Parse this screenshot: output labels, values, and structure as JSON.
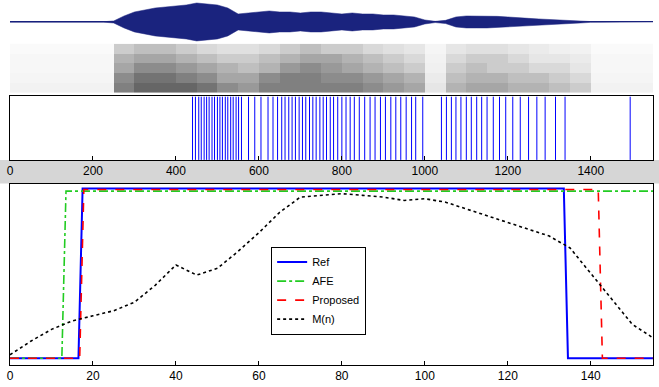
{
  "chart_data": [
    {
      "type": "waveform",
      "color": "#1a237e",
      "x": [
        0,
        25,
        50,
        75,
        100,
        125,
        150,
        175,
        200,
        225,
        250,
        275,
        300,
        325,
        350,
        375,
        400,
        425,
        450,
        475,
        500,
        525,
        550,
        575,
        600,
        625,
        650,
        675,
        700,
        725,
        750,
        775,
        800,
        825,
        850,
        875,
        900,
        925,
        950,
        975,
        1000,
        1025,
        1050,
        1075,
        1100,
        1125,
        1150,
        1175,
        1200,
        1225,
        1250,
        1275,
        1300,
        1325,
        1350,
        1375,
        1400,
        1425,
        1450,
        1475,
        1500,
        1525,
        1550
      ],
      "values": [
        0.01,
        0.01,
        0.01,
        0.01,
        0.01,
        0.01,
        0.01,
        0.01,
        0.01,
        0.01,
        0.05,
        0.3,
        0.5,
        0.6,
        0.7,
        0.75,
        0.8,
        0.85,
        0.95,
        0.9,
        0.85,
        0.7,
        0.4,
        0.45,
        0.5,
        0.55,
        0.5,
        0.5,
        0.45,
        0.5,
        0.5,
        0.45,
        0.4,
        0.45,
        0.4,
        0.4,
        0.35,
        0.35,
        0.3,
        0.25,
        0.1,
        0.03,
        0.08,
        0.25,
        0.3,
        0.3,
        0.3,
        0.28,
        0.25,
        0.2,
        0.18,
        0.15,
        0.12,
        0.1,
        0.08,
        0.05,
        0.02,
        0.01,
        0.01,
        0.01,
        0.01,
        0.01,
        0.01
      ],
      "xlim": [
        0,
        1550
      ],
      "ylim": [
        -1,
        1
      ],
      "tick_labels": false
    },
    {
      "type": "heatmap",
      "x": [
        25,
        75,
        125,
        175,
        225,
        275,
        325,
        375,
        425,
        475,
        525,
        575,
        625,
        675,
        725,
        775,
        825,
        875,
        925,
        975,
        1025,
        1075,
        1125,
        1175,
        1225,
        1275,
        1325,
        1375,
        1425,
        1475,
        1525
      ],
      "y": [
        0.5,
        1.5,
        2.5,
        3.5,
        4.5
      ],
      "cells": [
        [
          0.05,
          0.05,
          0.05,
          0.05,
          0.05,
          0.5,
          0.6,
          0.6,
          0.6,
          0.55,
          0.45,
          0.4,
          0.5,
          0.5,
          0.5,
          0.5,
          0.5,
          0.45,
          0.4,
          0.35,
          0.1,
          0.3,
          0.35,
          0.35,
          0.3,
          0.3,
          0.25,
          0.2,
          0.05,
          0.05,
          0.05
        ],
        [
          0.04,
          0.04,
          0.04,
          0.04,
          0.04,
          0.45,
          0.55,
          0.55,
          0.5,
          0.45,
          0.35,
          0.35,
          0.45,
          0.5,
          0.5,
          0.45,
          0.45,
          0.4,
          0.35,
          0.3,
          0.08,
          0.25,
          0.3,
          0.3,
          0.25,
          0.25,
          0.2,
          0.15,
          0.04,
          0.04,
          0.04
        ],
        [
          0.03,
          0.03,
          0.03,
          0.03,
          0.03,
          0.35,
          0.45,
          0.45,
          0.4,
          0.35,
          0.3,
          0.25,
          0.3,
          0.4,
          0.45,
          0.4,
          0.35,
          0.3,
          0.25,
          0.2,
          0.06,
          0.2,
          0.25,
          0.2,
          0.2,
          0.15,
          0.15,
          0.1,
          0.03,
          0.03,
          0.03
        ],
        [
          0.03,
          0.03,
          0.03,
          0.03,
          0.03,
          0.3,
          0.35,
          0.35,
          0.3,
          0.25,
          0.2,
          0.2,
          0.25,
          0.3,
          0.35,
          0.35,
          0.3,
          0.25,
          0.2,
          0.15,
          0.05,
          0.15,
          0.2,
          0.2,
          0.15,
          0.1,
          0.1,
          0.08,
          0.03,
          0.03,
          0.03
        ],
        [
          0.02,
          0.02,
          0.02,
          0.02,
          0.02,
          0.2,
          0.25,
          0.25,
          0.2,
          0.15,
          0.12,
          0.12,
          0.15,
          0.2,
          0.25,
          0.2,
          0.2,
          0.15,
          0.12,
          0.1,
          0.04,
          0.1,
          0.12,
          0.12,
          0.1,
          0.08,
          0.06,
          0.05,
          0.02,
          0.02,
          0.02
        ]
      ],
      "zlim": [
        0,
        1
      ],
      "xlim": [
        0,
        1550
      ],
      "ylim": [
        0,
        5
      ],
      "tick_labels": false
    },
    {
      "type": "event",
      "color": "#0000ff",
      "x": [
        440,
        447,
        455,
        461,
        468,
        474,
        480,
        487,
        493,
        500,
        506,
        512,
        519,
        525,
        532,
        538,
        545,
        551,
        558,
        575,
        590,
        605,
        622,
        634,
        645,
        655,
        663,
        672,
        680,
        688,
        697,
        705,
        713,
        722,
        730,
        738,
        747,
        755,
        763,
        772,
        780,
        790,
        800,
        810,
        820,
        830,
        842,
        855,
        868,
        880,
        893,
        905,
        918,
        930,
        942,
        955,
        968,
        978,
        995,
        1040,
        1052,
        1064,
        1075,
        1087,
        1100,
        1112,
        1125,
        1137,
        1150,
        1165,
        1180,
        1195,
        1212,
        1230,
        1250,
        1270,
        1290,
        1315,
        1338,
        1495
      ],
      "xlim": [
        0,
        1550
      ],
      "xticks": [
        0,
        200,
        400,
        600,
        800,
        1000,
        1200,
        1400
      ],
      "ylim": [
        0,
        1
      ],
      "tick_labels": "x"
    },
    {
      "type": "line",
      "xlim": [
        0,
        155
      ],
      "xticks": [
        0,
        20,
        40,
        60,
        80,
        100,
        120,
        140
      ],
      "ylim": [
        -0.04,
        1.03
      ],
      "tick_labels": "x",
      "legend": "center",
      "series": [
        {
          "name": "Ref",
          "color": "#0000ff",
          "line_style": "solid",
          "x": [
            0,
            16.5,
            17.5,
            133.5,
            134.5,
            155
          ],
          "values": [
            0,
            0,
            1,
            1,
            0,
            0
          ]
        },
        {
          "name": "AFE",
          "color": "#22cc22",
          "line_style": "dashdot",
          "x": [
            0,
            12.5,
            13.5,
            155
          ],
          "values": [
            0,
            0,
            0.985,
            0.985
          ]
        },
        {
          "name": "Proposed",
          "color": "#ff0000",
          "line_style": "dash",
          "x": [
            0,
            16.8,
            17.8,
            141.8,
            142.8,
            155
          ],
          "values": [
            0,
            0,
            0.995,
            0.995,
            0,
            0
          ]
        },
        {
          "name": "M(n)",
          "color": "#000000",
          "line_style": "dot",
          "x": [
            0,
            5,
            10,
            15,
            20,
            25,
            30,
            35,
            40,
            45,
            50,
            55,
            60,
            65,
            70,
            75,
            80,
            85,
            90,
            95,
            100,
            105,
            110,
            115,
            120,
            125,
            130,
            135,
            140,
            145,
            150,
            155
          ],
          "values": [
            0.02,
            0.1,
            0.17,
            0.22,
            0.25,
            0.28,
            0.33,
            0.43,
            0.55,
            0.49,
            0.53,
            0.63,
            0.74,
            0.86,
            0.95,
            0.96,
            0.97,
            0.96,
            0.95,
            0.93,
            0.94,
            0.92,
            0.88,
            0.84,
            0.8,
            0.76,
            0.72,
            0.65,
            0.5,
            0.35,
            0.2,
            0.12
          ]
        }
      ]
    }
  ]
}
